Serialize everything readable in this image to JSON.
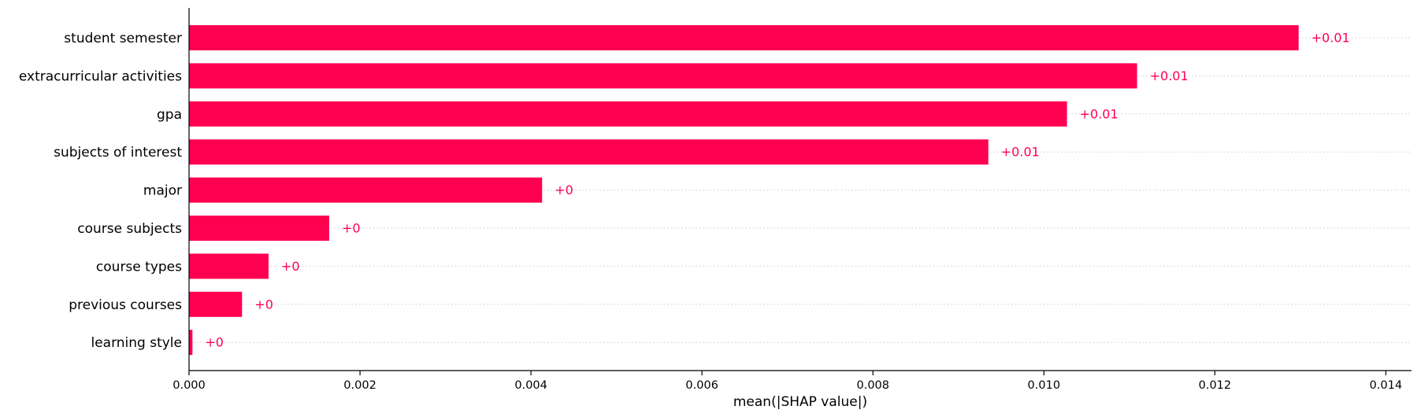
{
  "chart_data": {
    "type": "bar",
    "orientation": "horizontal",
    "categories": [
      "student semester",
      "extracurricular activities",
      "gpa",
      "subjects of interest",
      "major",
      "course subjects",
      "course types",
      "previous courses",
      "learning style"
    ],
    "values": [
      0.01298,
      0.01109,
      0.01027,
      0.00935,
      0.00413,
      0.00164,
      0.00093,
      0.00062,
      4e-05
    ],
    "value_labels": [
      "+0.01",
      "+0.01",
      "+0.01",
      "+0.01",
      "+0",
      "+0",
      "+0",
      "+0",
      "+0"
    ],
    "xlabel": "mean(|SHAP value|)",
    "ylabel": "",
    "xlim": [
      0,
      0.0143
    ],
    "xticks": [
      0.0,
      0.002,
      0.004,
      0.006,
      0.008,
      0.01,
      0.012,
      0.014
    ],
    "xtick_labels": [
      "0.000",
      "0.002",
      "0.004",
      "0.006",
      "0.008",
      "0.010",
      "0.012",
      "0.014"
    ],
    "grid": "dotted horizontal per row",
    "legend": "none",
    "bar_color": "#ff0051"
  }
}
